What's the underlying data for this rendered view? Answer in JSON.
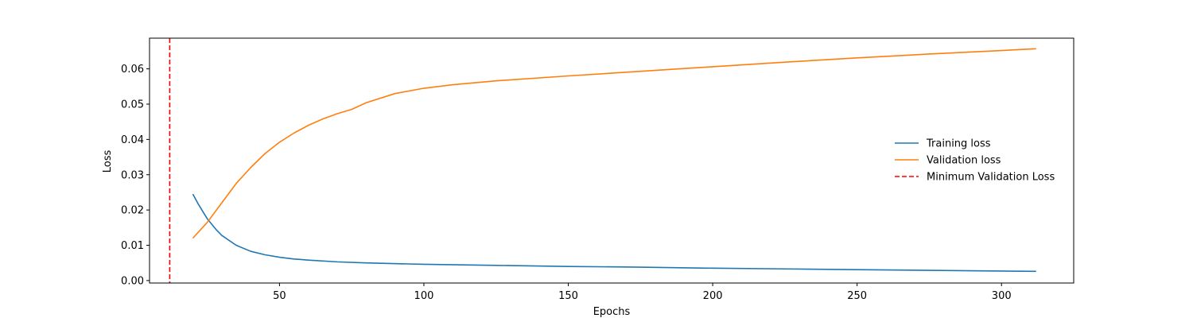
{
  "chart_data": {
    "type": "line",
    "title": "",
    "xlabel": "Epochs",
    "ylabel": "Loss",
    "xlim": [
      5,
      325
    ],
    "ylim": [
      -0.0007,
      0.0687
    ],
    "x_ticks": [
      50,
      100,
      150,
      200,
      250,
      300
    ],
    "x_tick_labels": [
      "50",
      "100",
      "150",
      "200",
      "250",
      "300"
    ],
    "y_ticks": [
      0.0,
      0.01,
      0.02,
      0.03,
      0.04,
      0.05,
      0.06
    ],
    "y_tick_labels": [
      "0.00",
      "0.01",
      "0.02",
      "0.03",
      "0.04",
      "0.05",
      "0.06"
    ],
    "grid": false,
    "legend_position": "center-right",
    "series": [
      {
        "name": "Training loss",
        "color": "#1f77b4",
        "style": "solid",
        "x": [
          20,
          22,
          25,
          28,
          30,
          35,
          40,
          45,
          50,
          55,
          60,
          70,
          80,
          100,
          125,
          150,
          175,
          200,
          225,
          250,
          275,
          300,
          312
        ],
        "y": [
          0.0245,
          0.0215,
          0.0175,
          0.0145,
          0.0128,
          0.01,
          0.0083,
          0.0073,
          0.0066,
          0.0061,
          0.0058,
          0.0053,
          0.005,
          0.0046,
          0.0043,
          0.004,
          0.0038,
          0.0035,
          0.0033,
          0.0031,
          0.0029,
          0.0027,
          0.0026
        ]
      },
      {
        "name": "Validation loss",
        "color": "#ff7f0e",
        "style": "solid",
        "x": [
          20,
          25,
          30,
          35,
          40,
          45,
          50,
          55,
          60,
          65,
          70,
          75,
          80,
          90,
          100,
          110,
          125,
          150,
          175,
          200,
          225,
          250,
          275,
          300,
          312
        ],
        "y": [
          0.012,
          0.0165,
          0.022,
          0.0275,
          0.032,
          0.036,
          0.0392,
          0.0418,
          0.044,
          0.0458,
          0.0473,
          0.0485,
          0.0504,
          0.053,
          0.0545,
          0.0555,
          0.0566,
          0.058,
          0.0593,
          0.0606,
          0.0619,
          0.0631,
          0.0642,
          0.0652,
          0.0657
        ]
      },
      {
        "name": "Minimum Validation Loss",
        "color": "#ff0000",
        "style": "dashed",
        "type": "vline",
        "x_value": 12
      }
    ]
  }
}
